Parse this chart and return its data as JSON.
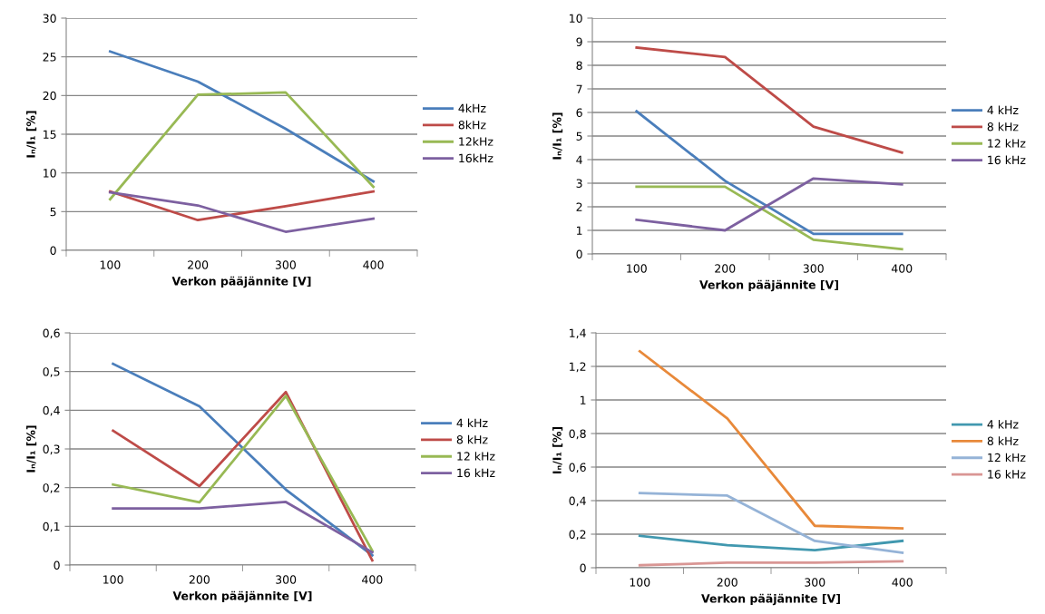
{
  "chart_data": [
    {
      "type": "line",
      "categories": [
        "100",
        "200",
        "300",
        "400"
      ],
      "xlabel": "Verkon pääjännite [V]",
      "ylabel": "Iₙ/I₁ [%]",
      "ylim": [
        0,
        30
      ],
      "yticks": [
        0,
        5,
        10,
        15,
        20,
        25,
        30
      ],
      "grid": "y",
      "legend": "right",
      "series": [
        {
          "name": "4kHz",
          "color": "#4a7ebb",
          "values": [
            25.7,
            21.8,
            15.7,
            8.9
          ]
        },
        {
          "name": "8kHz",
          "color": "#be4b48",
          "values": [
            7.6,
            3.9,
            5.7,
            7.6
          ]
        },
        {
          "name": "12kHz",
          "color": "#98b954",
          "values": [
            6.6,
            20.1,
            20.4,
            8.2
          ]
        },
        {
          "name": "16kHz",
          "color": "#7d60a0",
          "values": [
            7.5,
            5.8,
            2.4,
            4.1
          ]
        }
      ]
    },
    {
      "type": "line",
      "categories": [
        "100",
        "200",
        "300",
        "400"
      ],
      "xlabel": "Verkon pääjännite [V]",
      "ylabel": "Iₙ/I₁ [%]",
      "ylim": [
        0,
        10
      ],
      "yticks": [
        0,
        1,
        2,
        3,
        4,
        5,
        6,
        7,
        8,
        9,
        10
      ],
      "grid": "y",
      "legend": "right",
      "series": [
        {
          "name": "4 kHz",
          "color": "#4a7ebb",
          "values": [
            6.05,
            3.1,
            0.85,
            0.85
          ]
        },
        {
          "name": "8 kHz",
          "color": "#be4b48",
          "values": [
            8.75,
            8.35,
            5.4,
            4.3
          ]
        },
        {
          "name": "12 kHz",
          "color": "#98b954",
          "values": [
            2.85,
            2.85,
            0.6,
            0.2
          ]
        },
        {
          "name": "16 kHz",
          "color": "#7d60a0",
          "values": [
            1.45,
            1.0,
            3.2,
            2.95
          ]
        }
      ]
    },
    {
      "type": "line",
      "categories": [
        "100",
        "200",
        "300",
        "400"
      ],
      "xlabel": "Verkon pääjännite [V]",
      "ylabel": "Iₙ/I₁ [%]",
      "ylim": [
        0,
        0.6
      ],
      "yticks": [
        0,
        {
          "value": 0.1,
          "label": "0,1"
        },
        {
          "value": 0.2,
          "label": "0,2"
        },
        {
          "value": 0.3,
          "label": "0,3"
        },
        {
          "value": 0.4,
          "label": "0,4"
        },
        {
          "value": 0.5,
          "label": "0,5"
        },
        {
          "value": 0.6,
          "label": "0,6"
        }
      ],
      "grid": "y",
      "legend": "right",
      "series": [
        {
          "name": "4 kHz",
          "color": "#4a7ebb",
          "values": [
            0.52,
            0.41,
            0.195,
            0.025
          ]
        },
        {
          "name": "8 kHz",
          "color": "#be4b48",
          "values": [
            0.347,
            0.204,
            0.447,
            0.012
          ]
        },
        {
          "name": "12 kHz",
          "color": "#98b954",
          "values": [
            0.208,
            0.162,
            0.437,
            0.037
          ]
        },
        {
          "name": "16 kHz",
          "color": "#7d60a0",
          "values": [
            0.146,
            0.146,
            0.163,
            0.033
          ]
        }
      ]
    },
    {
      "type": "line",
      "categories": [
        "100",
        "200",
        "300",
        "400"
      ],
      "xlabel": "Verkon pääjännite [V]",
      "ylabel": "Iₙ/I₁ [%]",
      "ylim": [
        0,
        1.4
      ],
      "yticks": [
        0,
        {
          "value": 0.2,
          "label": "0,2"
        },
        {
          "value": 0.4,
          "label": "0,4"
        },
        {
          "value": 0.6,
          "label": "0,6"
        },
        {
          "value": 0.8,
          "label": "0,8"
        },
        1,
        {
          "value": 1.2,
          "label": "1,2"
        },
        {
          "value": 1.4,
          "label": "1,4"
        }
      ],
      "grid": "y",
      "legend": "right",
      "series": [
        {
          "name": "4 kHz",
          "color": "#4198af",
          "values": [
            0.19,
            0.135,
            0.105,
            0.16
          ]
        },
        {
          "name": "8 kHz",
          "color": "#e8893a",
          "values": [
            1.29,
            0.89,
            0.25,
            0.235
          ]
        },
        {
          "name": "12 kHz",
          "color": "#95b3d7",
          "values": [
            0.445,
            0.43,
            0.16,
            0.09
          ]
        },
        {
          "name": "16 kHz",
          "color": "#d99694",
          "values": [
            0.015,
            0.03,
            0.03,
            0.038
          ]
        }
      ]
    }
  ]
}
